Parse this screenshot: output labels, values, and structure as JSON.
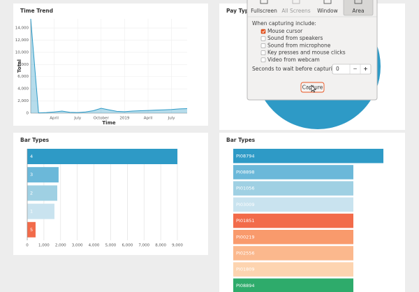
{
  "chart_data": [
    {
      "type": "line",
      "title": "Time Trend",
      "x_label": "Time",
      "y_label": "Total",
      "area": true,
      "color": "#2e9ac6",
      "categories": [
        null,
        null,
        null,
        "April",
        null,
        null,
        "July",
        null,
        null,
        "October",
        null,
        null,
        "2019",
        null,
        null,
        "April",
        null,
        null,
        "July",
        null,
        null
      ],
      "values": [
        15500,
        50,
        100,
        200,
        350,
        150,
        100,
        200,
        400,
        800,
        550,
        300,
        250,
        350,
        400,
        450,
        500,
        550,
        600,
        700,
        750
      ],
      "ylim": [
        0,
        15500
      ],
      "yticks": [
        0,
        {
          "value": 2000,
          "label": "2,000"
        },
        {
          "value": 4000,
          "label": "4,000"
        },
        {
          "value": 6000,
          "label": "6,000"
        },
        {
          "value": 8000,
          "label": "8,000"
        },
        {
          "value": 10000,
          "label": "10,000"
        },
        {
          "value": 12000,
          "label": "12,000"
        },
        {
          "value": 14000,
          "label": "14,000"
        }
      ],
      "grid": true
    },
    {
      "type": "pie",
      "title": "Pay Types",
      "color": "#2e9ac6"
    },
    {
      "type": "hbar",
      "title": "Bar Types",
      "categories": [
        "4",
        "3",
        "2",
        "1",
        "5"
      ],
      "values": [
        9000,
        1880,
        1800,
        1630,
        500
      ],
      "colors": [
        "#2e9ac6",
        "#6bb8d9",
        "#9fd0e3",
        "#c9e3ef",
        "#f26b4a"
      ],
      "xlim": [
        0,
        9000
      ],
      "xticks": [
        0,
        {
          "value": 1000,
          "label": "1,000"
        },
        {
          "value": 2000,
          "label": "2,000"
        },
        {
          "value": 3000,
          "label": "3,000"
        },
        {
          "value": 4000,
          "label": "4,000"
        },
        {
          "value": 5000,
          "label": "5,000"
        },
        {
          "value": 6000,
          "label": "6,000"
        },
        {
          "value": 7000,
          "label": "7,000"
        },
        {
          "value": 8000,
          "label": "8,000"
        },
        {
          "value": 9000,
          "label": "9,000"
        }
      ],
      "grid": true
    },
    {
      "type": "hbar",
      "title": "Bar Types",
      "categories": [
        "PI08794",
        "PI08898",
        "PI01056",
        "PI03009",
        "PI01851",
        "PI00219",
        "PI02556",
        "PI01809",
        "PI08894"
      ],
      "values": [
        10000,
        8000,
        8000,
        8000,
        8000,
        8000,
        8000,
        8000,
        8000
      ],
      "colors": [
        "#2e9ac6",
        "#6bb8d9",
        "#9fd0e3",
        "#c9e3ef",
        "#f26b4a",
        "#f99a6c",
        "#fbb88d",
        "#fdd4b0",
        "#2eab6b"
      ],
      "xlim": [
        0,
        10000
      ],
      "grid": false
    }
  ],
  "capture_dialog": {
    "modes": [
      {
        "label": "Fullscreen",
        "selected": false,
        "disabled": false
      },
      {
        "label": "All Screens",
        "selected": false,
        "disabled": true
      },
      {
        "label": "Window",
        "selected": false,
        "disabled": false
      },
      {
        "label": "Area",
        "selected": true,
        "disabled": false
      }
    ],
    "include_label": "When capturing include:",
    "options": [
      {
        "label": "Mouse cursor",
        "checked": true
      },
      {
        "label": "Sound from speakers",
        "checked": false
      },
      {
        "label": "Sound from microphone",
        "checked": false
      },
      {
        "label": "Key presses and mouse clicks",
        "checked": false
      },
      {
        "label": "Video from webcam",
        "checked": false
      }
    ],
    "delay_label": "Seconds to wait before capturing:",
    "delay_value": 0,
    "decrement": "−",
    "increment": "+",
    "capture_button": "Capture"
  }
}
